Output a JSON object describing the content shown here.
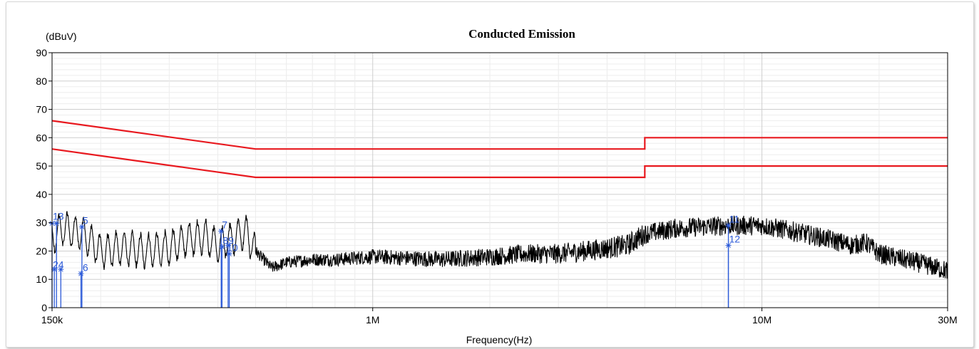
{
  "chart_data": {
    "type": "line",
    "title": "Conducted Emission",
    "ylabel": "(dBuV)",
    "xlabel": "Frequency(Hz)",
    "xscale": "log",
    "xlim": [
      150000,
      30000000
    ],
    "ylim": [
      0,
      90
    ],
    "grid": true,
    "yticks": [
      0,
      10,
      20,
      30,
      40,
      50,
      60,
      70,
      80,
      90
    ],
    "xticks": [
      {
        "value": 150000,
        "label": "150k"
      },
      {
        "value": 1000000,
        "label": "1M"
      },
      {
        "value": 10000000,
        "label": "10M"
      },
      {
        "value": 30000000,
        "label": "30M"
      }
    ],
    "limit_lines": [
      {
        "color": "#e8191f",
        "points": [
          [
            150000,
            66
          ],
          [
            500000,
            56
          ],
          [
            5000000,
            56
          ],
          [
            5000000,
            60
          ],
          [
            30000000,
            60
          ]
        ]
      },
      {
        "color": "#e8191f",
        "points": [
          [
            150000,
            56
          ],
          [
            500000,
            46
          ],
          [
            5000000,
            46
          ],
          [
            5000000,
            50
          ],
          [
            30000000,
            50
          ]
        ]
      }
    ],
    "spectrum": {
      "color": "#000000",
      "envelope": [
        [
          150000,
          25
        ],
        [
          160000,
          28
        ],
        [
          170000,
          27
        ],
        [
          180000,
          26
        ],
        [
          200000,
          20
        ],
        [
          230000,
          21
        ],
        [
          260000,
          20
        ],
        [
          300000,
          21
        ],
        [
          330000,
          24
        ],
        [
          370000,
          25
        ],
        [
          400000,
          22
        ],
        [
          430000,
          24
        ],
        [
          470000,
          27
        ],
        [
          500000,
          20
        ],
        [
          550000,
          14
        ],
        [
          600000,
          16
        ],
        [
          700000,
          17
        ],
        [
          800000,
          17
        ],
        [
          1000000,
          18
        ],
        [
          1500000,
          17
        ],
        [
          2000000,
          18
        ],
        [
          2500000,
          19
        ],
        [
          3000000,
          19
        ],
        [
          3500000,
          20
        ],
        [
          4000000,
          21
        ],
        [
          4500000,
          22
        ],
        [
          5000000,
          26
        ],
        [
          6000000,
          28
        ],
        [
          8000000,
          29
        ],
        [
          10000000,
          29
        ],
        [
          12000000,
          27
        ],
        [
          15000000,
          24
        ],
        [
          17000000,
          22
        ],
        [
          18500000,
          23
        ],
        [
          20000000,
          19
        ],
        [
          25000000,
          16
        ],
        [
          30000000,
          13
        ]
      ]
    },
    "markers": [
      {
        "label": "1",
        "freq": 150000,
        "level": 29.8
      },
      {
        "label": "2",
        "freq": 152000,
        "level": 13.5
      },
      {
        "label": "3",
        "freq": 154000,
        "level": 29.8
      },
      {
        "label": "4",
        "freq": 158000,
        "level": 13.5
      },
      {
        "label": "5",
        "freq": 179000,
        "level": 28.5
      },
      {
        "label": "6",
        "freq": 178000,
        "level": 12.0
      },
      {
        "label": "7",
        "freq": 408000,
        "level": 27.0
      },
      {
        "label": "8",
        "freq": 410000,
        "level": 21.5
      },
      {
        "label": "9",
        "freq": 425000,
        "level": 22.0
      },
      {
        "label": "10",
        "freq": 428000,
        "level": 19.0
      },
      {
        "label": "11",
        "freq": 8200000,
        "level": 29.0
      },
      {
        "label": "12",
        "freq": 8200000,
        "level": 22.0
      }
    ],
    "marker_labels": [
      {
        "text": "13",
        "freq": 150000,
        "level": 30
      },
      {
        "text": "24",
        "freq": 150000,
        "level": 13
      },
      {
        "text": "5",
        "freq": 179000,
        "level": 28.5
      },
      {
        "text": "6",
        "freq": 179000,
        "level": 12
      },
      {
        "text": "7",
        "freq": 408000,
        "level": 27
      },
      {
        "text": "89",
        "freq": 410000,
        "level": 21.5
      },
      {
        "text": "10",
        "freq": 420000,
        "level": 19
      },
      {
        "text": "11",
        "freq": 8200000,
        "level": 29
      },
      {
        "text": "12",
        "freq": 8200000,
        "level": 22
      }
    ],
    "colors": {
      "axis": "#000000",
      "grid": "#dcdcdc",
      "marker": "#2d5bd8",
      "limit": "#e8191f",
      "trace": "#000000"
    }
  }
}
